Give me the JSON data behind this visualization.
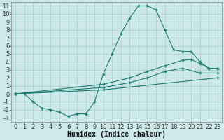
{
  "title": "",
  "xlabel": "Humidex (Indice chaleur)",
  "background_color": "#cce8e8",
  "grid_color": "#aacccc",
  "line_color": "#1a7a6e",
  "xlim": [
    -0.5,
    23.5
  ],
  "ylim": [
    -3.5,
    11.5
  ],
  "xticks": [
    0,
    1,
    2,
    3,
    4,
    5,
    6,
    7,
    8,
    9,
    10,
    11,
    12,
    13,
    14,
    15,
    16,
    17,
    18,
    19,
    20,
    21,
    22,
    23
  ],
  "yticks": [
    -3,
    -2,
    -1,
    0,
    1,
    2,
    3,
    4,
    5,
    6,
    7,
    8,
    9,
    10,
    11
  ],
  "line1_x": [
    0,
    1,
    2,
    3,
    4,
    5,
    6,
    7,
    8,
    9,
    10,
    11,
    12,
    13,
    14,
    15,
    16,
    17,
    18,
    19,
    20,
    21,
    22,
    23
  ],
  "line1_y": [
    0,
    0,
    -1,
    -1.8,
    -2,
    -2.3,
    -2.8,
    -2.5,
    -2.5,
    -1,
    2.5,
    5,
    7.5,
    9.5,
    11,
    11,
    10.5,
    8,
    5.5,
    5.3,
    5.3,
    4.0,
    3.2,
    3.2
  ],
  "line2_x": [
    0,
    10,
    13,
    15,
    17,
    19,
    20,
    21,
    22,
    23
  ],
  "line2_y": [
    0,
    1.2,
    2.0,
    2.8,
    3.5,
    4.2,
    4.3,
    3.8,
    3.2,
    3.2
  ],
  "line3_x": [
    0,
    10,
    13,
    15,
    17,
    19,
    21,
    23
  ],
  "line3_y": [
    0,
    0.8,
    1.4,
    2.0,
    2.8,
    3.2,
    2.6,
    2.6
  ],
  "line4_x": [
    0,
    10,
    23
  ],
  "line4_y": [
    0,
    0.5,
    2.0
  ],
  "font_size": 6,
  "xlabel_fontsize": 7,
  "marker": "+"
}
